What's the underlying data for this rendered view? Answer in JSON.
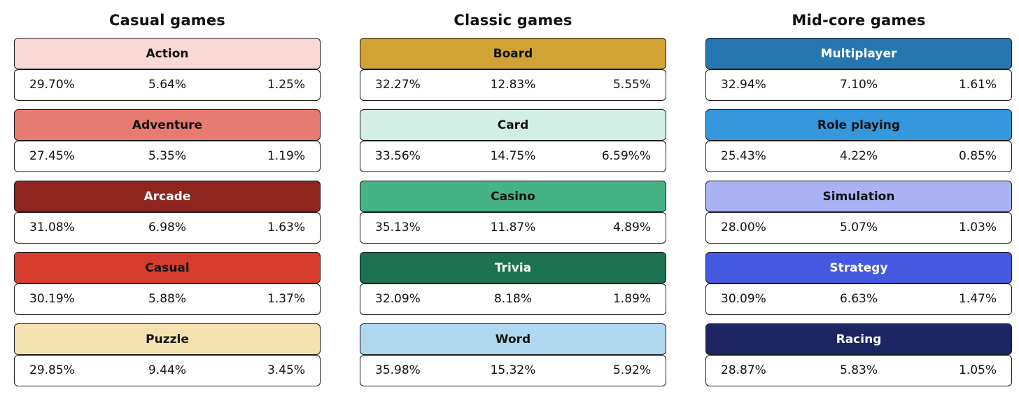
{
  "chart_data": {
    "type": "table",
    "groups": [
      {
        "title": "Casual games",
        "genres": [
          {
            "name": "Action",
            "values": [
              "29.70%",
              "5.64%",
              "1.25%"
            ],
            "color": "#fad9d7",
            "text_color": "#111111"
          },
          {
            "name": "Adventure",
            "values": [
              "27.45%",
              "5.35%",
              "1.19%"
            ],
            "color": "#e77b71",
            "text_color": "#111111"
          },
          {
            "name": "Arcade",
            "values": [
              "31.08%",
              "6.98%",
              "1.63%"
            ],
            "color": "#8e2520",
            "text_color": "#ffffff"
          },
          {
            "name": "Casual",
            "values": [
              "30.19%",
              "5.88%",
              "1.37%"
            ],
            "color": "#d63d2f",
            "text_color": "#111111"
          },
          {
            "name": "Puzzle",
            "values": [
              "29.85%",
              "9.44%",
              "3.45%"
            ],
            "color": "#f6e2b1",
            "text_color": "#111111"
          }
        ]
      },
      {
        "title": "Classic games",
        "genres": [
          {
            "name": "Board",
            "values": [
              "32.27%",
              "12.83%",
              "5.55%"
            ],
            "color": "#d1a334",
            "text_color": "#111111"
          },
          {
            "name": "Card",
            "values": [
              "33.56%",
              "14.75%",
              "6.59%%"
            ],
            "color": "#d1efe4",
            "text_color": "#111111"
          },
          {
            "name": "Casino",
            "values": [
              "35.13%",
              "11.87%",
              "4.89%"
            ],
            "color": "#45b385",
            "text_color": "#111111"
          },
          {
            "name": "Trivia",
            "values": [
              "32.09%",
              "8.18%",
              "1.89%"
            ],
            "color": "#1b7150",
            "text_color": "#ffffff"
          },
          {
            "name": "Word",
            "values": [
              "35.98%",
              "15.32%",
              "5.92%"
            ],
            "color": "#b0d7f0",
            "text_color": "#111111"
          }
        ]
      },
      {
        "title": "Mid-core games",
        "genres": [
          {
            "name": "Multiplayer",
            "values": [
              "32.94%",
              "7.10%",
              "1.61%"
            ],
            "color": "#2677b0",
            "text_color": "#ffffff"
          },
          {
            "name": "Role playing",
            "values": [
              "25.43%",
              "4.22%",
              "0.85%"
            ],
            "color": "#3598dc",
            "text_color": "#111111"
          },
          {
            "name": "Simulation",
            "values": [
              "28.00%",
              "5.07%",
              "1.03%"
            ],
            "color": "#a9b2f3",
            "text_color": "#111111"
          },
          {
            "name": "Strategy",
            "values": [
              "30.09%",
              "6.63%",
              "1.47%"
            ],
            "color": "#4458e0",
            "text_color": "#ffffff"
          },
          {
            "name": "Racing",
            "values": [
              "28.87%",
              "5.83%",
              "1.05%"
            ],
            "color": "#1e2563",
            "text_color": "#ffffff"
          }
        ]
      }
    ]
  }
}
